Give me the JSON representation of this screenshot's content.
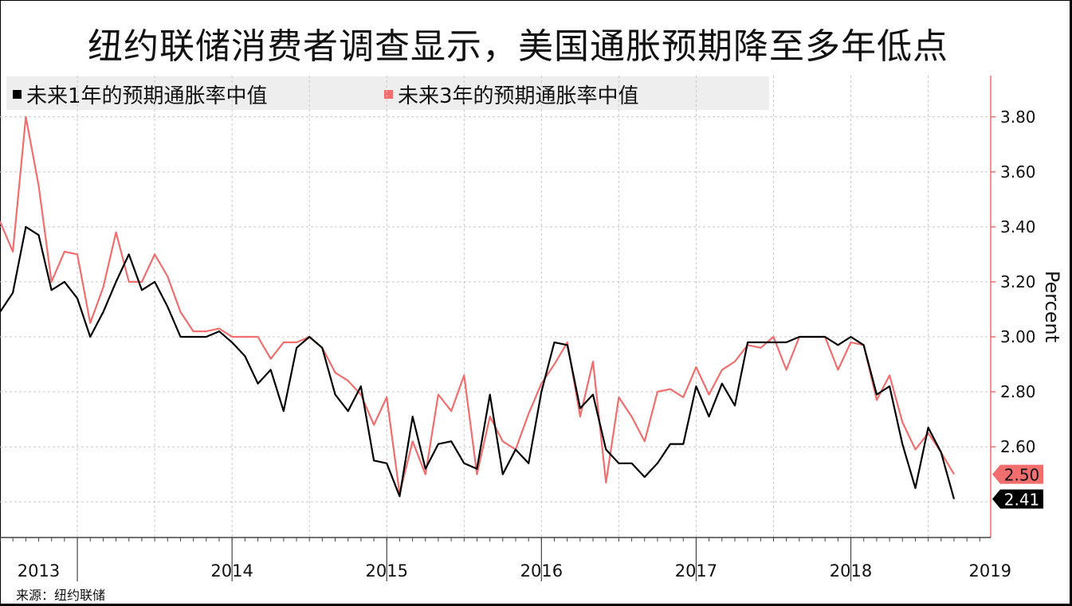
{
  "title": "纽约联储消费者调查显示，美国通胀预期降至多年低点",
  "source": "来源：纽约联储",
  "chart_data": {
    "type": "line",
    "ylabel": "Percent",
    "ylim": [
      2.27,
      3.95
    ],
    "y_ticks": [
      "2.60",
      "2.80",
      "3.00",
      "3.20",
      "3.40",
      "3.60",
      "3.80"
    ],
    "y_tick_values": [
      2.6,
      2.8,
      3.0,
      3.2,
      3.4,
      3.6,
      3.8
    ],
    "x_start": 2013.0,
    "x_end": 2019.6,
    "year_labels": [
      "2013",
      "2014",
      "2015",
      "2016",
      "2017",
      "2018",
      "2019"
    ],
    "year_label_positions": [
      2013.25,
      2014.5,
      2015.5,
      2016.5,
      2017.5,
      2018.5,
      2019.4
    ],
    "year_boundaries": [
      2013.5,
      2014.5,
      2015.5,
      2016.5,
      2017.5,
      2018.5
    ],
    "legend_placement": "top-left",
    "grid": true,
    "series": [
      {
        "name": "未来1年的预期通胀率中值",
        "color": "#000000",
        "end_label": "2.41",
        "values": [
          [
            2013.0,
            3.09
          ],
          [
            2013.083,
            3.16
          ],
          [
            2013.167,
            3.4
          ],
          [
            2013.25,
            3.37
          ],
          [
            2013.333,
            3.17
          ],
          [
            2013.417,
            3.2
          ],
          [
            2013.5,
            3.14
          ],
          [
            2013.583,
            3.0
          ],
          [
            2013.667,
            3.09
          ],
          [
            2013.75,
            3.2
          ],
          [
            2013.833,
            3.3
          ],
          [
            2013.917,
            3.17
          ],
          [
            2014.0,
            3.2
          ],
          [
            2014.083,
            3.11
          ],
          [
            2014.167,
            3.0
          ],
          [
            2014.25,
            3.0
          ],
          [
            2014.333,
            3.0
          ],
          [
            2014.417,
            3.02
          ],
          [
            2014.5,
            2.98
          ],
          [
            2014.583,
            2.93
          ],
          [
            2014.667,
            2.83
          ],
          [
            2014.75,
            2.88
          ],
          [
            2014.833,
            2.73
          ],
          [
            2014.917,
            2.96
          ],
          [
            2015.0,
            3.0
          ],
          [
            2015.083,
            2.96
          ],
          [
            2015.167,
            2.79
          ],
          [
            2015.25,
            2.73
          ],
          [
            2015.333,
            2.82
          ],
          [
            2015.417,
            2.55
          ],
          [
            2015.5,
            2.54
          ],
          [
            2015.583,
            2.42
          ],
          [
            2015.667,
            2.71
          ],
          [
            2015.75,
            2.52
          ],
          [
            2015.833,
            2.61
          ],
          [
            2015.917,
            2.62
          ],
          [
            2016.0,
            2.54
          ],
          [
            2016.083,
            2.52
          ],
          [
            2016.167,
            2.79
          ],
          [
            2016.25,
            2.5
          ],
          [
            2016.333,
            2.59
          ],
          [
            2016.417,
            2.54
          ],
          [
            2016.5,
            2.8
          ],
          [
            2016.583,
            2.98
          ],
          [
            2016.667,
            2.97
          ],
          [
            2016.75,
            2.74
          ],
          [
            2016.833,
            2.79
          ],
          [
            2016.917,
            2.59
          ],
          [
            2017.0,
            2.54
          ],
          [
            2017.083,
            2.54
          ],
          [
            2017.167,
            2.49
          ],
          [
            2017.25,
            2.54
          ],
          [
            2017.333,
            2.61
          ],
          [
            2017.417,
            2.61
          ],
          [
            2017.5,
            2.82
          ],
          [
            2017.583,
            2.71
          ],
          [
            2017.667,
            2.83
          ],
          [
            2017.75,
            2.75
          ],
          [
            2017.833,
            2.98
          ],
          [
            2017.917,
            2.98
          ],
          [
            2018.0,
            2.98
          ],
          [
            2018.083,
            2.98
          ],
          [
            2018.167,
            3.0
          ],
          [
            2018.25,
            3.0
          ],
          [
            2018.333,
            3.0
          ],
          [
            2018.417,
            2.97
          ],
          [
            2018.5,
            3.0
          ],
          [
            2018.583,
            2.97
          ],
          [
            2018.667,
            2.79
          ],
          [
            2018.75,
            2.82
          ],
          [
            2018.833,
            2.61
          ],
          [
            2018.917,
            2.45
          ],
          [
            2019.0,
            2.67
          ],
          [
            2019.083,
            2.58
          ],
          [
            2019.167,
            2.41
          ]
        ]
      },
      {
        "name": "未来3年的预期通胀率中值",
        "color": "#f06e6e",
        "end_label": "2.50",
        "values": [
          [
            2013.0,
            3.42
          ],
          [
            2013.083,
            3.31
          ],
          [
            2013.167,
            3.8
          ],
          [
            2013.25,
            3.55
          ],
          [
            2013.333,
            3.2
          ],
          [
            2013.417,
            3.31
          ],
          [
            2013.5,
            3.3
          ],
          [
            2013.583,
            3.05
          ],
          [
            2013.667,
            3.18
          ],
          [
            2013.75,
            3.38
          ],
          [
            2013.833,
            3.2
          ],
          [
            2013.917,
            3.2
          ],
          [
            2014.0,
            3.3
          ],
          [
            2014.083,
            3.22
          ],
          [
            2014.167,
            3.09
          ],
          [
            2014.25,
            3.02
          ],
          [
            2014.333,
            3.02
          ],
          [
            2014.417,
            3.03
          ],
          [
            2014.5,
            3.0
          ],
          [
            2014.583,
            3.0
          ],
          [
            2014.667,
            3.0
          ],
          [
            2014.75,
            2.92
          ],
          [
            2014.833,
            2.98
          ],
          [
            2014.917,
            2.98
          ],
          [
            2015.0,
            3.0
          ],
          [
            2015.083,
            2.96
          ],
          [
            2015.167,
            2.87
          ],
          [
            2015.25,
            2.84
          ],
          [
            2015.333,
            2.79
          ],
          [
            2015.417,
            2.68
          ],
          [
            2015.5,
            2.78
          ],
          [
            2015.583,
            2.43
          ],
          [
            2015.667,
            2.62
          ],
          [
            2015.75,
            2.5
          ],
          [
            2015.833,
            2.79
          ],
          [
            2015.917,
            2.73
          ],
          [
            2016.0,
            2.86
          ],
          [
            2016.083,
            2.5
          ],
          [
            2016.167,
            2.71
          ],
          [
            2016.25,
            2.62
          ],
          [
            2016.333,
            2.59
          ],
          [
            2016.417,
            2.72
          ],
          [
            2016.5,
            2.83
          ],
          [
            2016.583,
            2.9
          ],
          [
            2016.667,
            2.98
          ],
          [
            2016.75,
            2.71
          ],
          [
            2016.833,
            2.91
          ],
          [
            2016.917,
            2.47
          ],
          [
            2017.0,
            2.78
          ],
          [
            2017.083,
            2.71
          ],
          [
            2017.167,
            2.62
          ],
          [
            2017.25,
            2.8
          ],
          [
            2017.333,
            2.81
          ],
          [
            2017.417,
            2.78
          ],
          [
            2017.5,
            2.89
          ],
          [
            2017.583,
            2.79
          ],
          [
            2017.667,
            2.88
          ],
          [
            2017.75,
            2.91
          ],
          [
            2017.833,
            2.97
          ],
          [
            2017.917,
            2.96
          ],
          [
            2018.0,
            3.0
          ],
          [
            2018.083,
            2.88
          ],
          [
            2018.167,
            3.0
          ],
          [
            2018.25,
            3.0
          ],
          [
            2018.333,
            3.0
          ],
          [
            2018.417,
            2.88
          ],
          [
            2018.5,
            2.98
          ],
          [
            2018.583,
            2.97
          ],
          [
            2018.667,
            2.77
          ],
          [
            2018.75,
            2.86
          ],
          [
            2018.833,
            2.69
          ],
          [
            2018.917,
            2.59
          ],
          [
            2019.0,
            2.65
          ],
          [
            2019.083,
            2.58
          ],
          [
            2019.167,
            2.5
          ]
        ]
      }
    ]
  }
}
